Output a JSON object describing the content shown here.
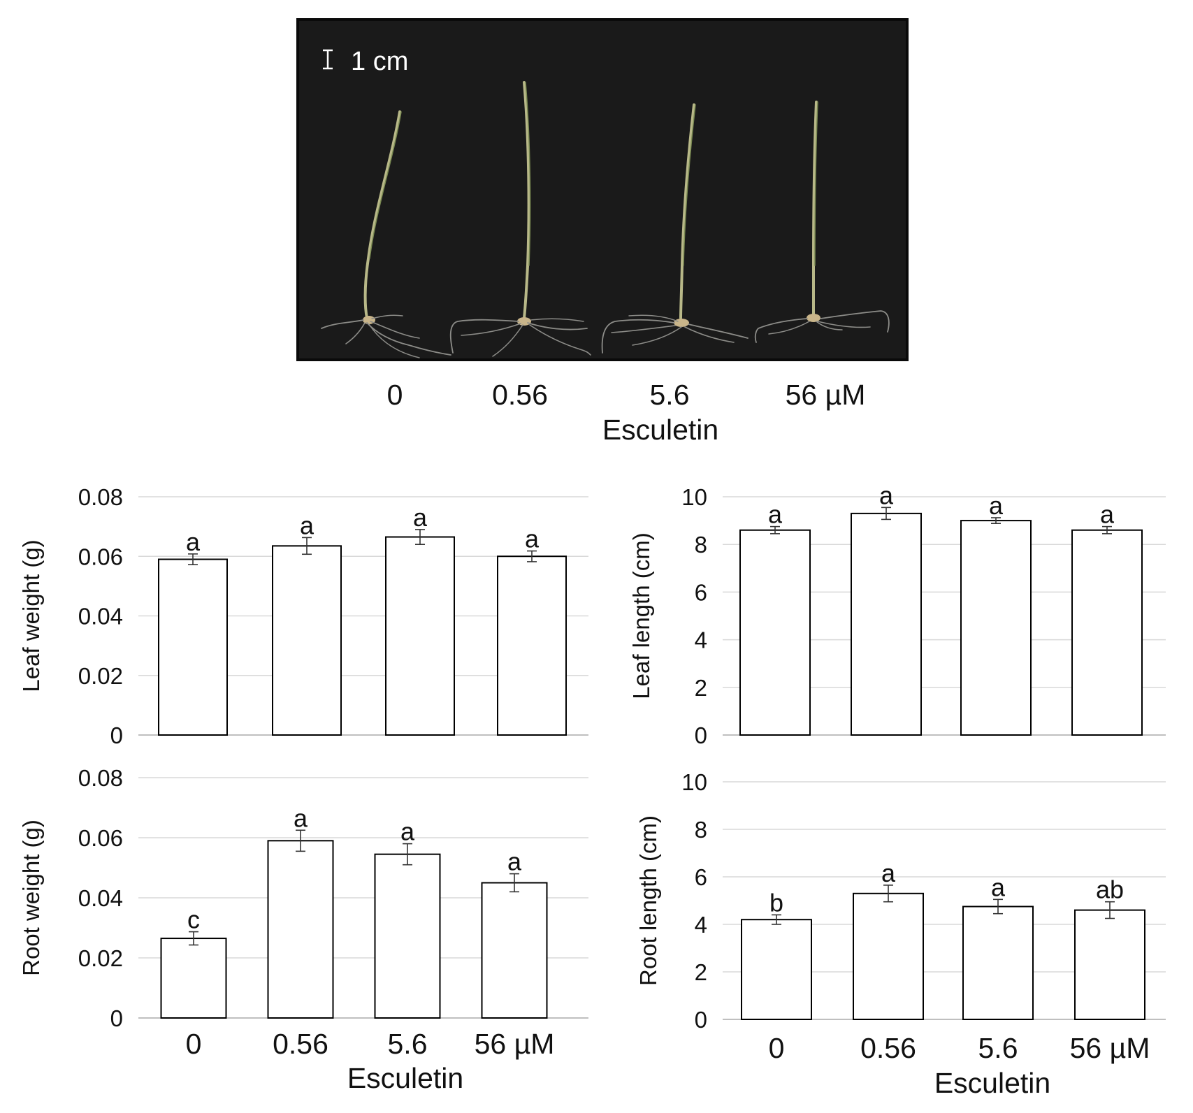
{
  "photo": {
    "scale_bar_label": "1 cm",
    "concentrations": [
      "0",
      "0.56",
      "5.6",
      "56 µM"
    ],
    "xlabel": "Esculetin",
    "background_color": "#1a1a1a",
    "seedling_color": "#b9b98a"
  },
  "colors": {
    "bar_fill": "#ffffff",
    "bar_stroke": "#000000",
    "grid": "#d9d9d9"
  },
  "chart_data": [
    {
      "type": "bar",
      "categories": [
        "0",
        "0.56",
        "5.6",
        "56 µM"
      ],
      "values": [
        0.059,
        0.0635,
        0.0665,
        0.06
      ],
      "errors": [
        0.0018,
        0.0028,
        0.0025,
        0.0018
      ],
      "significance": [
        "a",
        "a",
        "a",
        "a"
      ],
      "ylabel": "Leaf weight (g)",
      "xlabel": "",
      "ylim": [
        0,
        0.08
      ],
      "yticks": [
        0,
        0.02,
        0.04,
        0.06,
        0.08
      ],
      "ytick_labels": [
        "0",
        "0.02",
        "0.04",
        "0.06",
        "0.08"
      ],
      "grid": true
    },
    {
      "type": "bar",
      "categories": [
        "0",
        "0.56",
        "5.6",
        "56 µM"
      ],
      "values": [
        8.6,
        9.3,
        9.0,
        8.6
      ],
      "errors": [
        0.15,
        0.25,
        0.12,
        0.15
      ],
      "significance": [
        "a",
        "a",
        "a",
        "a"
      ],
      "ylabel": "Leaf length (cm)",
      "xlabel": "",
      "ylim": [
        0,
        10
      ],
      "yticks": [
        0,
        2,
        4,
        6,
        8,
        10
      ],
      "ytick_labels": [
        "0",
        "2",
        "4",
        "6",
        "8",
        "10"
      ],
      "grid": true
    },
    {
      "type": "bar",
      "categories": [
        "0",
        "0.56",
        "5.6",
        "56 µM"
      ],
      "values": [
        0.0265,
        0.059,
        0.0545,
        0.045
      ],
      "errors": [
        0.0022,
        0.0035,
        0.0035,
        0.003
      ],
      "significance": [
        "c",
        "a",
        "a",
        "a"
      ],
      "ylabel": "Root weight (g)",
      "xlabel": "Esculetin",
      "ylim": [
        0,
        0.08
      ],
      "yticks": [
        0,
        0.02,
        0.04,
        0.06,
        0.08
      ],
      "ytick_labels": [
        "0",
        "0.02",
        "0.04",
        "0.06",
        "0.08"
      ],
      "grid": true
    },
    {
      "type": "bar",
      "categories": [
        "0",
        "0.56",
        "5.6",
        "56 µM"
      ],
      "values": [
        4.2,
        5.3,
        4.75,
        4.6
      ],
      "errors": [
        0.2,
        0.35,
        0.3,
        0.35
      ],
      "significance": [
        "b",
        "a",
        "a",
        "ab"
      ],
      "ylabel": "Root length (cm)",
      "xlabel": "Esculetin",
      "ylim": [
        0,
        10
      ],
      "yticks": [
        0,
        2,
        4,
        6,
        8,
        10
      ],
      "ytick_labels": [
        "0",
        "2",
        "4",
        "6",
        "8",
        "10"
      ],
      "grid": true
    }
  ]
}
